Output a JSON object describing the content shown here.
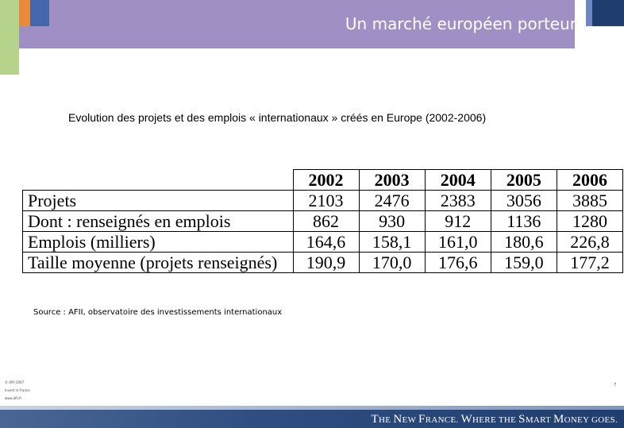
{
  "slide": {
    "title": "Un marché européen porteur",
    "subtitle": "Evolution des projets et des emplois « internationaux »  créés en Europe (2002-2006)",
    "source": "Source : AFII, observatoire des investissements internationaux",
    "page_number": "7"
  },
  "table": {
    "years": [
      "2002",
      "2003",
      "2004",
      "2005",
      "2006"
    ],
    "rows": [
      {
        "label": "Projets",
        "values": [
          "2103",
          "2476",
          "2383",
          "3056",
          "3885"
        ]
      },
      {
        "label": "Dont : renseignés en emplois",
        "values": [
          "862",
          "930",
          "912",
          "1136",
          "1280"
        ]
      },
      {
        "label": "Emplois (milliers)",
        "values": [
          "164,6",
          "158,1",
          "161,0",
          "180,6",
          "226,8"
        ]
      },
      {
        "label": "Taille moyenne (projets renseignés)",
        "values": [
          "190,9",
          "170,0",
          "176,6",
          "159,0",
          "177,2"
        ]
      }
    ]
  },
  "footer": {
    "slogan_parts": [
      "T",
      "HE ",
      "N",
      "EW ",
      "F",
      "RANCE. ",
      "W",
      "HERE THE ",
      "S",
      "MART ",
      "M",
      "ONEY GOES."
    ],
    "tiny_lines": [
      "© AFII 2007",
      "Invest in France",
      "www.afii.fr"
    ]
  },
  "colors": {
    "title_bar": "#a08fc4",
    "green_block": "#b5d38a",
    "orange_block": "#e8893c",
    "blue_block": "#4466aa",
    "navy_block": "#1f3d6e"
  }
}
